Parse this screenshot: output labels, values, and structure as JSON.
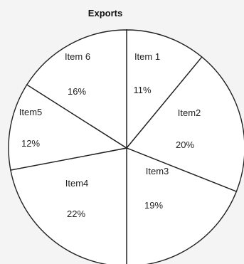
{
  "chart_data": {
    "type": "pie",
    "title": "Exports",
    "slices": [
      {
        "label": "Item 1",
        "value": 11,
        "value_text": "11%"
      },
      {
        "label": "Item2",
        "value": 20,
        "value_text": "20%"
      },
      {
        "label": "Item3",
        "value": 19,
        "value_text": "19%"
      },
      {
        "label": "Item4",
        "value": 22,
        "value_text": "22%"
      },
      {
        "label": "Item5",
        "value": 12,
        "value_text": "12%"
      },
      {
        "label": "Item 6",
        "value": 16,
        "value_text": "16%"
      }
    ],
    "start_angle": "12 o'clock",
    "direction": "clockwise",
    "legend": "none",
    "colors": {
      "fill": "#ffffff",
      "stroke": "#222222"
    }
  }
}
